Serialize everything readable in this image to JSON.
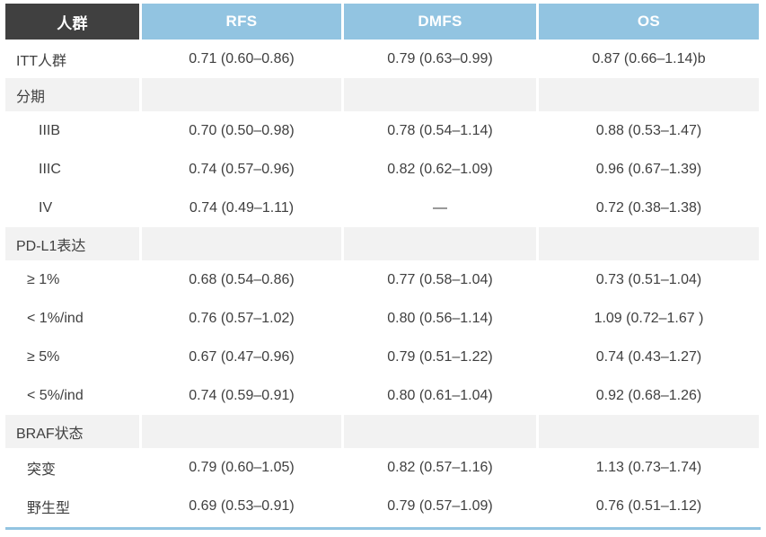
{
  "table": {
    "columns": [
      "人群",
      "RFS",
      "DMFS",
      "OS"
    ],
    "rows": [
      {
        "type": "data",
        "indent": 0,
        "label": "ITT人群",
        "values": [
          "0.71 (0.60–0.86)",
          "0.79 (0.63–0.99)",
          "0.87 (0.66–1.14)b"
        ]
      },
      {
        "type": "section",
        "label": "分期"
      },
      {
        "type": "data",
        "indent": 2,
        "label": "IIIB",
        "values": [
          "0.70 (0.50–0.98)",
          "0.78 (0.54–1.14)",
          "0.88 (0.53–1.47)"
        ]
      },
      {
        "type": "data",
        "indent": 2,
        "label": "IIIC",
        "values": [
          "0.74 (0.57–0.96)",
          "0.82 (0.62–1.09)",
          "0.96 (0.67–1.39)"
        ]
      },
      {
        "type": "data",
        "indent": 2,
        "label": "IV",
        "values": [
          "0.74 (0.49–1.11)",
          "—",
          "0.72 (0.38–1.38)"
        ]
      },
      {
        "type": "section",
        "label": "PD-L1表达"
      },
      {
        "type": "data",
        "indent": 1,
        "label": "≥ 1%",
        "values": [
          "0.68 (0.54–0.86)",
          "0.77 (0.58–1.04)",
          "0.73 (0.51–1.04)"
        ]
      },
      {
        "type": "data",
        "indent": 1,
        "label": "< 1%/ind",
        "values": [
          "0.76 (0.57–1.02)",
          "0.80 (0.56–1.14)",
          "1.09 (0.72–1.67 )"
        ]
      },
      {
        "type": "data",
        "indent": 1,
        "label": "≥ 5%",
        "values": [
          "0.67 (0.47–0.96)",
          "0.79 (0.51–1.22)",
          "0.74 (0.43–1.27)"
        ]
      },
      {
        "type": "data",
        "indent": 1,
        "label": "< 5%/ind",
        "values": [
          "0.74 (0.59–0.91)",
          "0.80 (0.61–1.04)",
          "0.92 (0.68–1.26)"
        ]
      },
      {
        "type": "section",
        "label": "BRAF状态"
      },
      {
        "type": "data",
        "indent": 1,
        "label": "突变",
        "values": [
          "0.79 (0.60–1.05)",
          "0.82 (0.57–1.16)",
          "1.13 (0.73–1.74)"
        ]
      },
      {
        "type": "data",
        "indent": 1,
        "label": "野生型",
        "values": [
          "0.69 (0.53–0.91)",
          "0.79 (0.57–1.09)",
          "0.76 (0.51–1.12)"
        ]
      }
    ]
  },
  "colors": {
    "header_dark_bg": "#404040",
    "header_blue_bg": "#92c4e1",
    "section_band_bg": "#f2f2f2",
    "body_text": "#3f3f3f",
    "bottom_rule": "#92c4e1"
  }
}
